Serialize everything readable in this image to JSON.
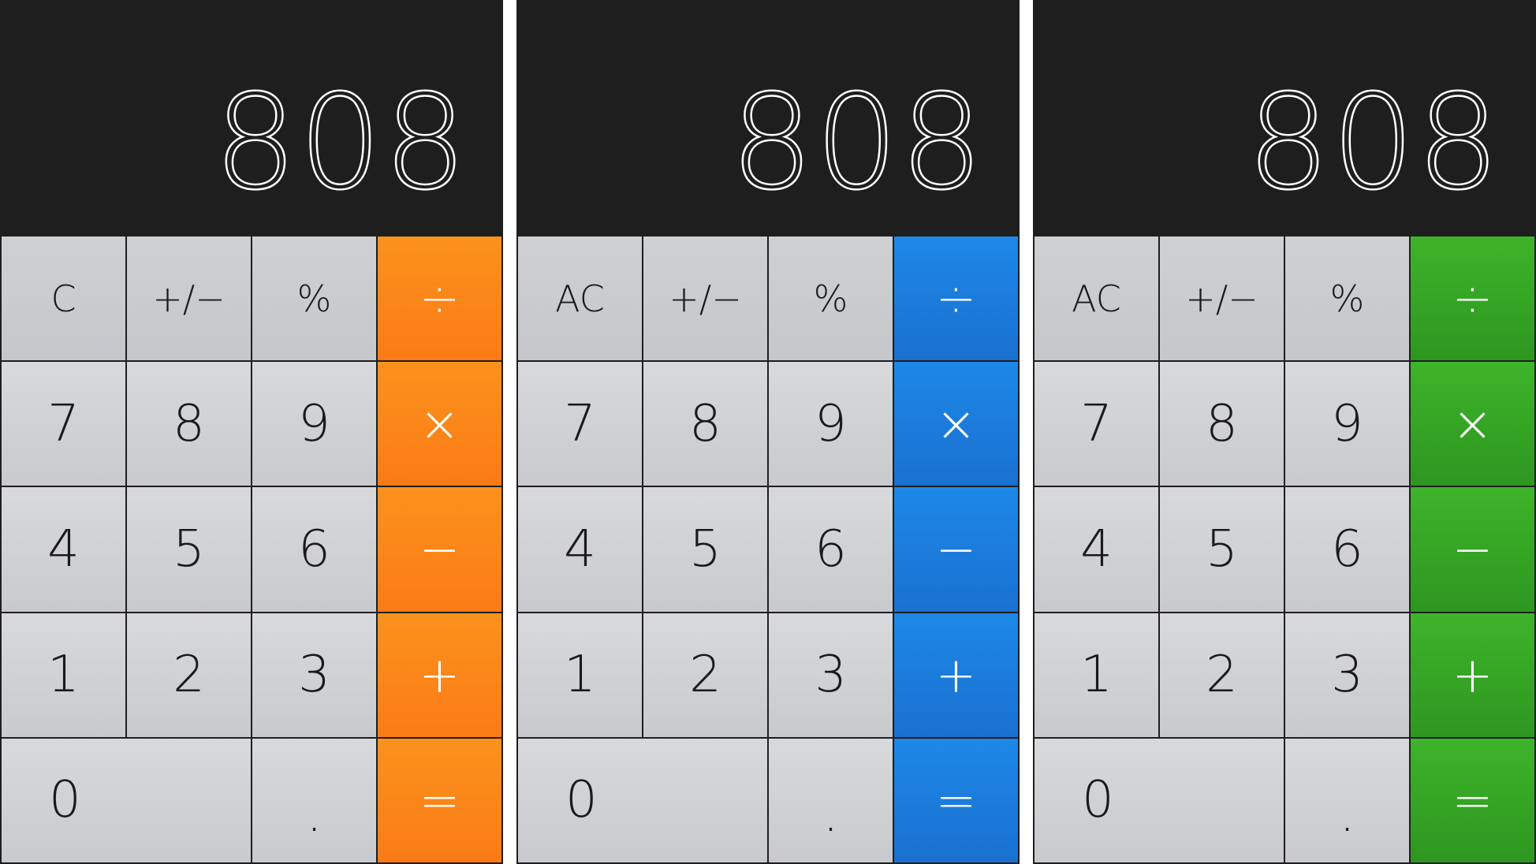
{
  "calculators": [
    {
      "theme": "orange",
      "accent_color": "#fb8a1a",
      "display": "808",
      "keys": {
        "clear": "C",
        "sign": "+/−",
        "percent": "%",
        "divide": "÷",
        "multiply": "×",
        "subtract": "−",
        "add": "+",
        "equals": "=",
        "d7": "7",
        "d8": "8",
        "d9": "9",
        "d4": "4",
        "d5": "5",
        "d6": "6",
        "d1": "1",
        "d2": "2",
        "d3": "3",
        "d0": "0",
        "decimal": "."
      }
    },
    {
      "theme": "blue",
      "accent_color": "#1b7fdf",
      "display": "808",
      "keys": {
        "clear": "AC",
        "sign": "+/−",
        "percent": "%",
        "divide": "÷",
        "multiply": "×",
        "subtract": "−",
        "add": "+",
        "equals": "=",
        "d7": "7",
        "d8": "8",
        "d9": "9",
        "d4": "4",
        "d5": "5",
        "d6": "6",
        "d1": "1",
        "d2": "2",
        "d3": "3",
        "d0": "0",
        "decimal": "."
      }
    },
    {
      "theme": "green",
      "accent_color": "#35a424",
      "display": "808",
      "keys": {
        "clear": "AC",
        "sign": "+/−",
        "percent": "%",
        "divide": "÷",
        "multiply": "×",
        "subtract": "−",
        "add": "+",
        "equals": "=",
        "d7": "7",
        "d8": "8",
        "d9": "9",
        "d4": "4",
        "d5": "5",
        "d6": "6",
        "d1": "1",
        "d2": "2",
        "d3": "3",
        "d0": "0",
        "decimal": "."
      }
    }
  ]
}
